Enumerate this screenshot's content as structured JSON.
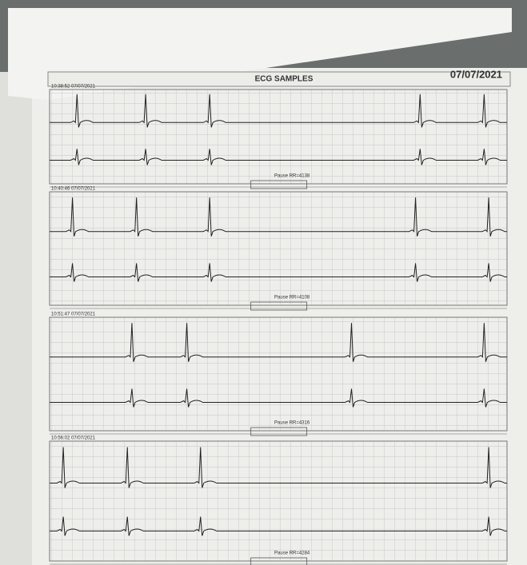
{
  "header": {
    "title": "ECG SAMPLES",
    "date": "07/07/2021"
  },
  "strips": [
    {
      "time": "10:38:52 07/07/2021",
      "pause": "Pause RR=4138"
    },
    {
      "time": "10:40:46 07/07/2021",
      "pause": "Pause RR=4108"
    },
    {
      "time": "10:51:47 07/07/2021",
      "pause": "Pause RR=4316"
    },
    {
      "time": "10:56:02 07/07/2021",
      "pause": "Pause RR=4284"
    }
  ]
}
